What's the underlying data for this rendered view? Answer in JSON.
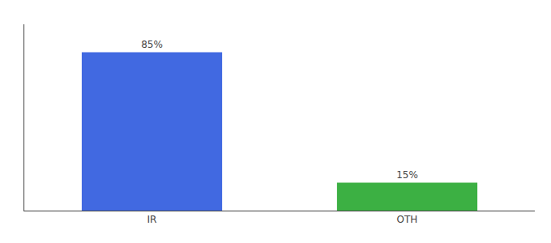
{
  "chart_data": {
    "type": "bar",
    "categories": [
      "IR",
      "OTH"
    ],
    "values": [
      85,
      15
    ],
    "value_labels": [
      "85%",
      "15%"
    ],
    "colors": [
      "#4169e1",
      "#3cb043"
    ],
    "ylim": [
      0,
      100
    ],
    "yticks": [],
    "grid": false,
    "tick_labels": "x"
  }
}
